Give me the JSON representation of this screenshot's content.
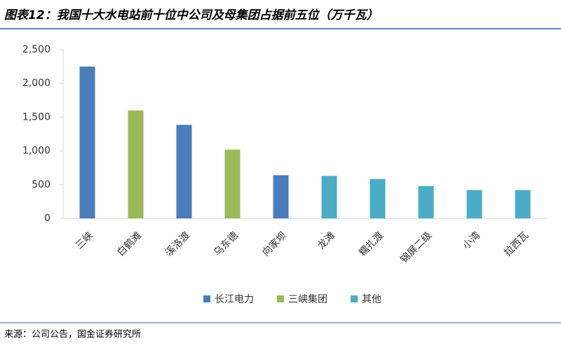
{
  "chart_data": {
    "type": "bar",
    "title": "图表12：我国十大水电站前十位中公司及母集团占据前五位（万千瓦）",
    "source": "来源：公司公告，国金证券研究所",
    "categories": [
      "三峡",
      "白鹤滩",
      "溪洛渡",
      "乌东德",
      "向家坝",
      "龙滩",
      "糯扎渡",
      "锦屏二级",
      "小湾",
      "拉西瓦"
    ],
    "series": [
      {
        "name": "长江电力",
        "color": "#4a7ebb",
        "values": [
          2250,
          null,
          1386,
          null,
          640,
          null,
          null,
          null,
          null,
          null
        ]
      },
      {
        "name": "三峡集团",
        "color": "#9bbb59",
        "values": [
          null,
          1600,
          null,
          1020,
          null,
          null,
          null,
          null,
          null,
          null
        ]
      },
      {
        "name": "其他",
        "color": "#4bacc6",
        "values": [
          null,
          null,
          null,
          null,
          null,
          630,
          585,
          480,
          420,
          420
        ]
      }
    ],
    "ylim": [
      0,
      2500
    ],
    "yticks": [
      0,
      500,
      {
        "value": 1000,
        "label": "1,000"
      },
      {
        "value": 1500,
        "label": "1,500"
      },
      {
        "value": 2000,
        "label": "2,000"
      },
      {
        "value": 2500,
        "label": "2,500"
      }
    ],
    "grid": false
  }
}
